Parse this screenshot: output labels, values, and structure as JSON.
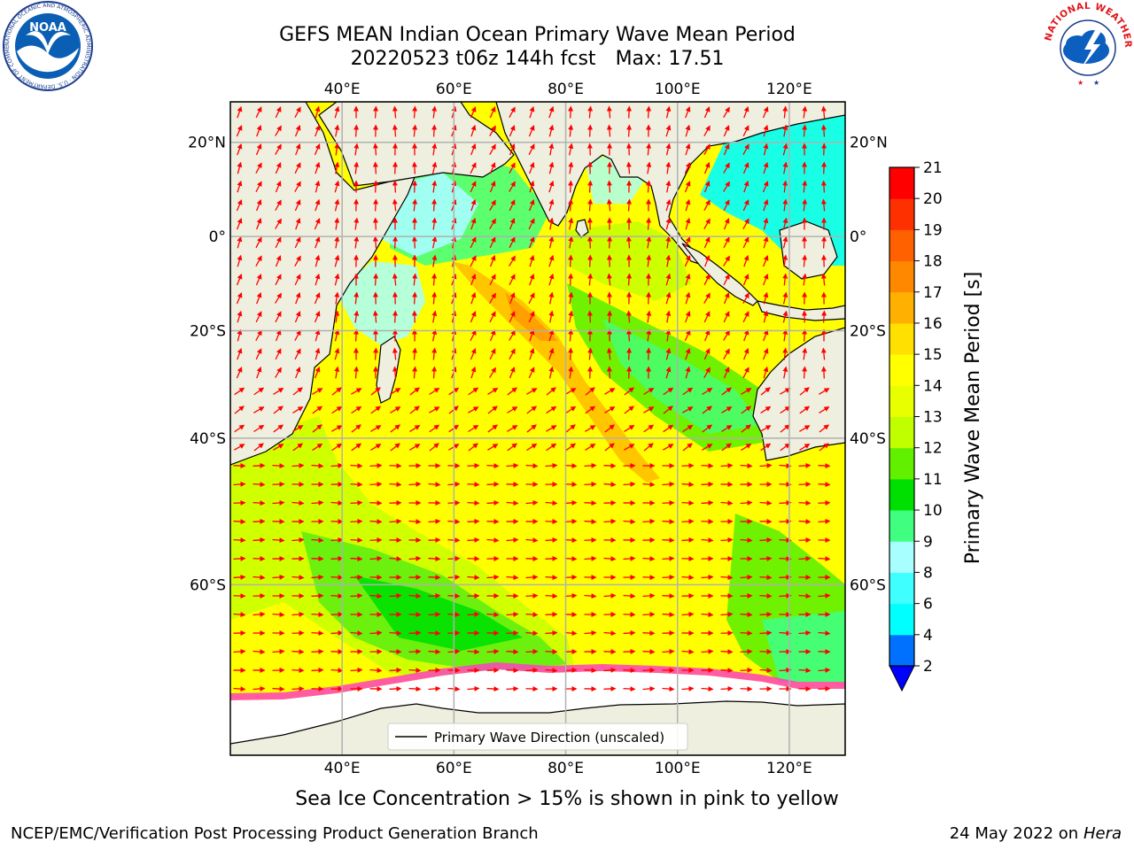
{
  "header": {
    "title_line1": "GEFS MEAN Indian Ocean Primary Wave Mean Period",
    "title_run": "20220523 t06z 144h fcst",
    "title_max": "Max: 17.51"
  },
  "logos": {
    "left": {
      "text": "NOAA",
      "ring_text": "NATIONAL OCEANIC AND ATMOSPHERIC ADMINISTRATION · U.S. DEPARTMENT OF COMMERCE",
      "icon": "noaa-logo-icon"
    },
    "right": {
      "ring_text": "NATIONAL WEATHER SERVICE",
      "icon": "nws-logo-icon"
    }
  },
  "map": {
    "lon_ticks": [
      "40°E",
      "60°E",
      "80°E",
      "100°E",
      "120°E"
    ],
    "lon_values": [
      40,
      60,
      80,
      100,
      120
    ],
    "lat_ticks": [
      "20°N",
      "0°",
      "20°S",
      "40°S",
      "60°S"
    ],
    "lat_values": [
      20,
      0,
      -20,
      -40,
      -60
    ],
    "lon_range": [
      20,
      130
    ],
    "lat_range": [
      -74,
      28
    ],
    "legend_label": "Primary Wave Direction (unscaled)",
    "colors": {
      "land": "#efefdf",
      "arrow": "#ff0000",
      "coast": "#000000",
      "grid": "#b0b0b0"
    }
  },
  "colorbar": {
    "label": "Primary Wave Mean Period [s]",
    "tick_labels": [
      "2",
      "4",
      "6",
      "8",
      "9",
      "10",
      "11",
      "12",
      "13",
      "14",
      "15",
      "16",
      "17",
      "18",
      "19",
      "20",
      "21"
    ],
    "levels": [
      2,
      4,
      6,
      8,
      9,
      10,
      11,
      12,
      13,
      14,
      15,
      16,
      17,
      18,
      19,
      20,
      21
    ],
    "colors": [
      "#0070ff",
      "#00ffff",
      "#40ffff",
      "#a8ffff",
      "#40ff80",
      "#00e000",
      "#60f000",
      "#c0ff00",
      "#e8ff00",
      "#ffff00",
      "#ffe000",
      "#ffb000",
      "#ff8800",
      "#ff6000",
      "#ff3000",
      "#ff0000"
    ],
    "extend_color": "#0000ff"
  },
  "subtitle": "Sea Ice Concentration > 15% is shown in pink to yellow",
  "footer": {
    "left": "NCEP/EMC/Verification Post Processing Product Generation Branch",
    "right_date": "24 May 2022 on",
    "right_host": "Hera"
  }
}
